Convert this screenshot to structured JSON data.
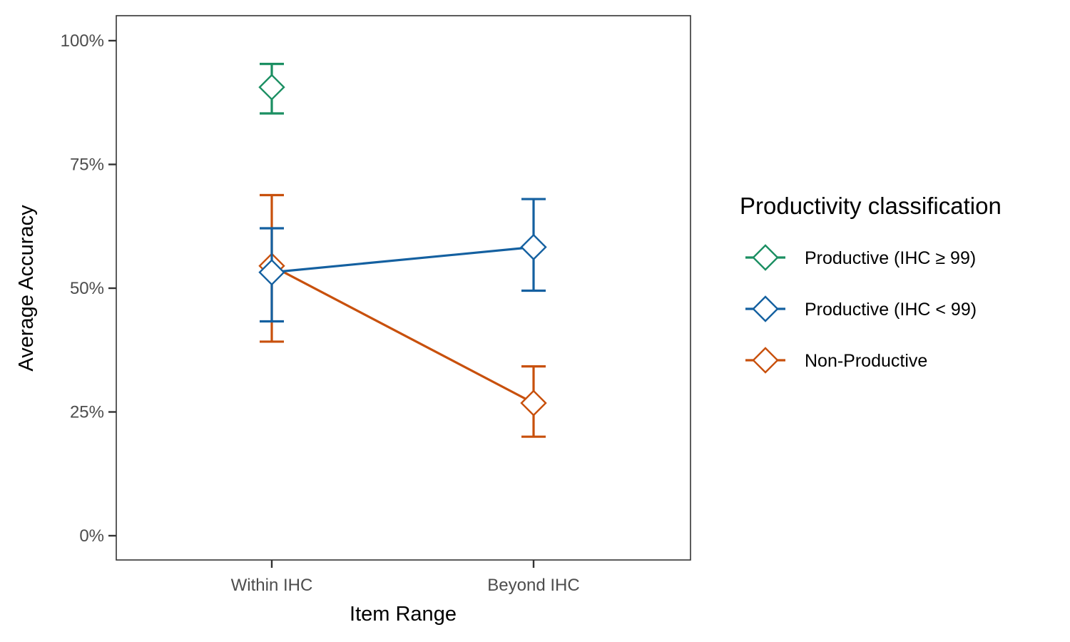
{
  "chart_data": {
    "type": "line",
    "title": "",
    "xlabel": "Item Range",
    "ylabel": "Average Accuracy",
    "categories": [
      "Within IHC",
      "Beyond IHC"
    ],
    "ylim": [
      0,
      1
    ],
    "yticks": [
      0,
      0.25,
      0.5,
      0.75,
      1.0
    ],
    "ytick_labels": [
      "0%",
      "25%",
      "50%",
      "75%",
      "100%"
    ],
    "grid": false,
    "legend_title": "Productivity classification",
    "legend_position": "right",
    "series": [
      {
        "name": "Productive (IHC ≥ 99)",
        "color": "#1b8f62",
        "points": [
          {
            "category": "Within IHC",
            "y": 0.906,
            "ymin": 0.853,
            "ymax": 0.953
          }
        ]
      },
      {
        "name": "Productive (IHC < 99)",
        "color": "#1460a0",
        "points": [
          {
            "category": "Within IHC",
            "y": 0.532,
            "ymin": 0.433,
            "ymax": 0.621
          },
          {
            "category": "Beyond IHC",
            "y": 0.583,
            "ymin": 0.495,
            "ymax": 0.68
          }
        ]
      },
      {
        "name": "Non-Productive",
        "color": "#c8500c",
        "points": [
          {
            "category": "Within IHC",
            "y": 0.545,
            "ymin": 0.392,
            "ymax": 0.688
          },
          {
            "category": "Beyond IHC",
            "y": 0.268,
            "ymin": 0.2,
            "ymax": 0.342
          }
        ]
      }
    ]
  }
}
